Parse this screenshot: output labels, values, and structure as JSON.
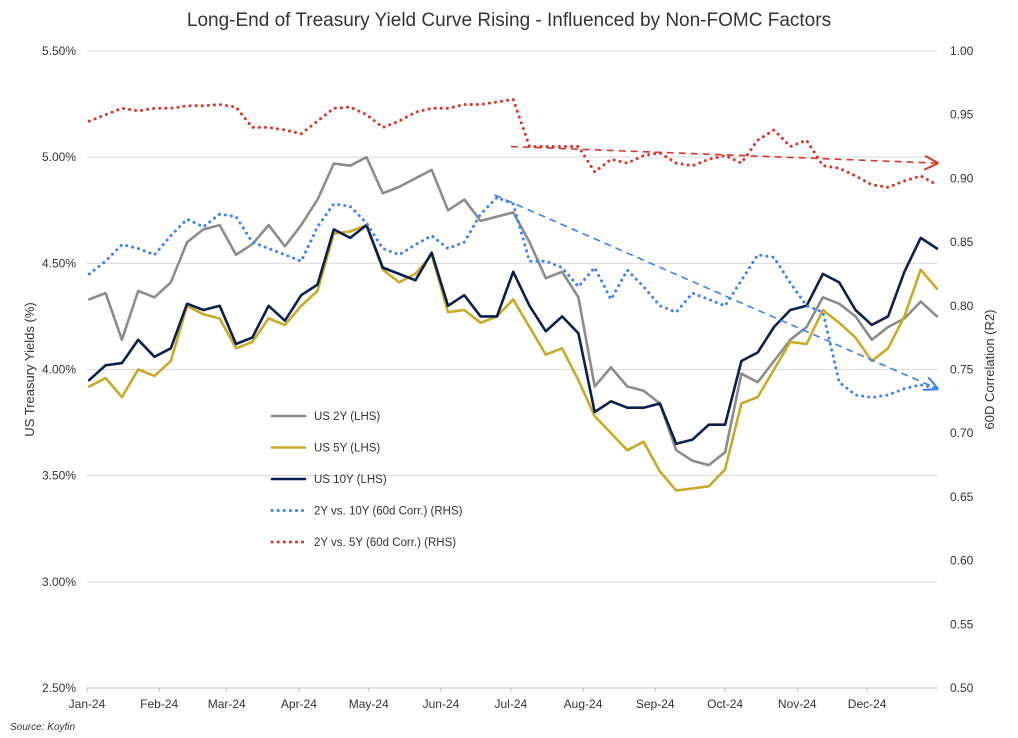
{
  "chart_data": {
    "type": "line",
    "title": "Long-End of Treasury Yield Curve Rising - Influenced by Non-FOMC Factors",
    "source": "Source: Koyfin",
    "ylabel_left": "US Treasury Yields (%)",
    "ylabel_right": "60D Correlation (R2)",
    "ylim_left": [
      2.5,
      5.5
    ],
    "ylim_right": [
      0.5,
      1.0
    ],
    "yticks_left": [
      "2.50%",
      "3.00%",
      "3.50%",
      "4.00%",
      "4.50%",
      "5.00%",
      "5.50%"
    ],
    "yticks_left_values": [
      2.5,
      3.0,
      3.5,
      4.0,
      4.5,
      5.0,
      5.5
    ],
    "yticks_right": [
      "0.50",
      "0.55",
      "0.60",
      "0.65",
      "0.70",
      "0.75",
      "0.80",
      "0.85",
      "0.90",
      "0.95",
      "1.00"
    ],
    "yticks_right_values": [
      0.5,
      0.55,
      0.6,
      0.65,
      0.7,
      0.75,
      0.8,
      0.85,
      0.9,
      0.95,
      1.0
    ],
    "x_tick_labels": [
      "Jan-24",
      "Feb-24",
      "Mar-24",
      "Apr-24",
      "May-24",
      "Jun-24",
      "Jul-24",
      "Aug-24",
      "Sep-24",
      "Oct-24",
      "Nov-24",
      "Dec-24"
    ],
    "x_tick_dates": [
      "2024-01-01",
      "2024-02-01",
      "2024-03-01",
      "2024-04-01",
      "2024-05-01",
      "2024-06-01",
      "2024-07-01",
      "2024-08-01",
      "2024-09-01",
      "2024-10-01",
      "2024-11-01",
      "2024-12-01"
    ],
    "x_range": [
      "2024-01-01",
      "2024-12-31"
    ],
    "grid": "horizontal",
    "legend_position": "center-left",
    "series": [
      {
        "name": "US 2Y (LHS)",
        "axis": "left",
        "style": "solid",
        "color": "#8c8c8c",
        "x": [
          "2024-01-02",
          "2024-01-09",
          "2024-01-16",
          "2024-01-23",
          "2024-01-30",
          "2024-02-06",
          "2024-02-13",
          "2024-02-20",
          "2024-02-27",
          "2024-03-05",
          "2024-03-12",
          "2024-03-19",
          "2024-03-26",
          "2024-04-02",
          "2024-04-09",
          "2024-04-16",
          "2024-04-23",
          "2024-04-30",
          "2024-05-07",
          "2024-05-14",
          "2024-05-21",
          "2024-05-28",
          "2024-06-04",
          "2024-06-11",
          "2024-06-18",
          "2024-06-25",
          "2024-07-02",
          "2024-07-09",
          "2024-07-16",
          "2024-07-23",
          "2024-07-30",
          "2024-08-06",
          "2024-08-13",
          "2024-08-20",
          "2024-08-27",
          "2024-09-03",
          "2024-09-10",
          "2024-09-17",
          "2024-09-24",
          "2024-10-01",
          "2024-10-08",
          "2024-10-15",
          "2024-10-22",
          "2024-10-29",
          "2024-11-05",
          "2024-11-12",
          "2024-11-19",
          "2024-11-26",
          "2024-12-03",
          "2024-12-10",
          "2024-12-17",
          "2024-12-24",
          "2024-12-31"
        ],
        "values": [
          4.33,
          4.36,
          4.14,
          4.37,
          4.34,
          4.41,
          4.6,
          4.66,
          4.68,
          4.54,
          4.59,
          4.68,
          4.58,
          4.68,
          4.8,
          4.97,
          4.96,
          5.0,
          4.83,
          4.86,
          4.9,
          4.94,
          4.75,
          4.8,
          4.7,
          4.72,
          4.74,
          4.6,
          4.43,
          4.46,
          4.34,
          3.92,
          4.01,
          3.92,
          3.9,
          3.84,
          3.62,
          3.57,
          3.55,
          3.61,
          3.98,
          3.94,
          4.04,
          4.14,
          4.2,
          4.34,
          4.31,
          4.25,
          4.14,
          4.2,
          4.24,
          4.32,
          4.25
        ]
      },
      {
        "name": "US 5Y (LHS)",
        "axis": "left",
        "style": "solid",
        "color": "#c8aa2b",
        "x": [
          "2024-01-02",
          "2024-01-09",
          "2024-01-16",
          "2024-01-23",
          "2024-01-30",
          "2024-02-06",
          "2024-02-13",
          "2024-02-20",
          "2024-02-27",
          "2024-03-05",
          "2024-03-12",
          "2024-03-19",
          "2024-03-26",
          "2024-04-02",
          "2024-04-09",
          "2024-04-16",
          "2024-04-23",
          "2024-04-30",
          "2024-05-07",
          "2024-05-14",
          "2024-05-21",
          "2024-05-28",
          "2024-06-04",
          "2024-06-11",
          "2024-06-18",
          "2024-06-25",
          "2024-07-02",
          "2024-07-09",
          "2024-07-16",
          "2024-07-23",
          "2024-07-30",
          "2024-08-06",
          "2024-08-13",
          "2024-08-20",
          "2024-08-27",
          "2024-09-03",
          "2024-09-10",
          "2024-09-17",
          "2024-09-24",
          "2024-10-01",
          "2024-10-08",
          "2024-10-15",
          "2024-10-22",
          "2024-10-29",
          "2024-11-05",
          "2024-11-12",
          "2024-11-19",
          "2024-11-26",
          "2024-12-03",
          "2024-12-10",
          "2024-12-17",
          "2024-12-24",
          "2024-12-31"
        ],
        "values": [
          3.92,
          3.96,
          3.87,
          4.0,
          3.97,
          4.04,
          4.3,
          4.26,
          4.24,
          4.1,
          4.13,
          4.24,
          4.21,
          4.3,
          4.37,
          4.64,
          4.65,
          4.68,
          4.47,
          4.41,
          4.45,
          4.54,
          4.27,
          4.28,
          4.22,
          4.25,
          4.33,
          4.2,
          4.07,
          4.1,
          3.95,
          3.78,
          3.7,
          3.62,
          3.66,
          3.52,
          3.43,
          3.44,
          3.45,
          3.53,
          3.84,
          3.87,
          4.0,
          4.13,
          4.12,
          4.28,
          4.22,
          4.15,
          4.04,
          4.1,
          4.25,
          4.47,
          4.38
        ]
      },
      {
        "name": "US 10Y (LHS)",
        "axis": "left",
        "style": "solid",
        "color": "#0b1f4d",
        "x": [
          "2024-01-02",
          "2024-01-09",
          "2024-01-16",
          "2024-01-23",
          "2024-01-30",
          "2024-02-06",
          "2024-02-13",
          "2024-02-20",
          "2024-02-27",
          "2024-03-05",
          "2024-03-12",
          "2024-03-19",
          "2024-03-26",
          "2024-04-02",
          "2024-04-09",
          "2024-04-16",
          "2024-04-23",
          "2024-04-30",
          "2024-05-07",
          "2024-05-14",
          "2024-05-21",
          "2024-05-28",
          "2024-06-04",
          "2024-06-11",
          "2024-06-18",
          "2024-06-25",
          "2024-07-02",
          "2024-07-09",
          "2024-07-16",
          "2024-07-23",
          "2024-07-30",
          "2024-08-06",
          "2024-08-13",
          "2024-08-20",
          "2024-08-27",
          "2024-09-03",
          "2024-09-10",
          "2024-09-17",
          "2024-09-24",
          "2024-10-01",
          "2024-10-08",
          "2024-10-15",
          "2024-10-22",
          "2024-10-29",
          "2024-11-05",
          "2024-11-12",
          "2024-11-19",
          "2024-11-26",
          "2024-12-03",
          "2024-12-10",
          "2024-12-17",
          "2024-12-24",
          "2024-12-31"
        ],
        "values": [
          3.95,
          4.02,
          4.03,
          4.14,
          4.06,
          4.1,
          4.31,
          4.28,
          4.3,
          4.12,
          4.15,
          4.3,
          4.23,
          4.35,
          4.4,
          4.66,
          4.62,
          4.68,
          4.48,
          4.45,
          4.42,
          4.55,
          4.3,
          4.35,
          4.25,
          4.25,
          4.46,
          4.3,
          4.18,
          4.25,
          4.17,
          3.8,
          3.85,
          3.82,
          3.82,
          3.84,
          3.65,
          3.67,
          3.74,
          3.74,
          4.04,
          4.08,
          4.2,
          4.28,
          4.3,
          4.45,
          4.41,
          4.28,
          4.21,
          4.25,
          4.46,
          4.62,
          4.57
        ]
      },
      {
        "name": "2Y vs. 10Y (60d Corr.) (RHS)",
        "axis": "right",
        "style": "dotted",
        "color": "#3b82f6",
        "x": [
          "2024-01-02",
          "2024-01-09",
          "2024-01-16",
          "2024-01-23",
          "2024-01-30",
          "2024-02-06",
          "2024-02-13",
          "2024-02-20",
          "2024-02-27",
          "2024-03-05",
          "2024-03-12",
          "2024-03-19",
          "2024-03-26",
          "2024-04-02",
          "2024-04-09",
          "2024-04-16",
          "2024-04-23",
          "2024-04-30",
          "2024-05-07",
          "2024-05-14",
          "2024-05-21",
          "2024-05-28",
          "2024-06-04",
          "2024-06-11",
          "2024-06-18",
          "2024-06-25",
          "2024-07-02",
          "2024-07-09",
          "2024-07-16",
          "2024-07-23",
          "2024-07-30",
          "2024-08-06",
          "2024-08-13",
          "2024-08-20",
          "2024-08-27",
          "2024-09-03",
          "2024-09-10",
          "2024-09-17",
          "2024-09-24",
          "2024-10-01",
          "2024-10-08",
          "2024-10-15",
          "2024-10-22",
          "2024-10-29",
          "2024-11-05",
          "2024-11-12",
          "2024-11-19",
          "2024-11-26",
          "2024-12-03",
          "2024-12-10",
          "2024-12-17",
          "2024-12-24",
          "2024-12-31"
        ],
        "values": [
          0.825,
          0.835,
          0.848,
          0.845,
          0.84,
          0.855,
          0.868,
          0.862,
          0.872,
          0.87,
          0.85,
          0.845,
          0.84,
          0.835,
          0.862,
          0.88,
          0.878,
          0.865,
          0.845,
          0.84,
          0.848,
          0.855,
          0.845,
          0.85,
          0.872,
          0.885,
          0.88,
          0.835,
          0.835,
          0.83,
          0.815,
          0.83,
          0.805,
          0.828,
          0.815,
          0.8,
          0.795,
          0.81,
          0.805,
          0.8,
          0.82,
          0.84,
          0.838,
          0.818,
          0.8,
          0.795,
          0.74,
          0.73,
          0.728,
          0.73,
          0.735,
          0.738,
          0.735
        ]
      },
      {
        "name": "2Y vs. 5Y (60d Corr.) (RHS)",
        "axis": "right",
        "style": "dotted",
        "color": "#d9372b",
        "x": [
          "2024-01-02",
          "2024-01-09",
          "2024-01-16",
          "2024-01-23",
          "2024-01-30",
          "2024-02-06",
          "2024-02-13",
          "2024-02-20",
          "2024-02-27",
          "2024-03-05",
          "2024-03-12",
          "2024-03-19",
          "2024-03-26",
          "2024-04-02",
          "2024-04-09",
          "2024-04-16",
          "2024-04-23",
          "2024-04-30",
          "2024-05-07",
          "2024-05-14",
          "2024-05-21",
          "2024-05-28",
          "2024-06-04",
          "2024-06-11",
          "2024-06-18",
          "2024-06-25",
          "2024-07-02",
          "2024-07-09",
          "2024-07-16",
          "2024-07-23",
          "2024-07-30",
          "2024-08-06",
          "2024-08-13",
          "2024-08-20",
          "2024-08-27",
          "2024-09-03",
          "2024-09-10",
          "2024-09-17",
          "2024-09-24",
          "2024-10-01",
          "2024-10-08",
          "2024-10-15",
          "2024-10-22",
          "2024-10-29",
          "2024-11-05",
          "2024-11-12",
          "2024-11-19",
          "2024-11-26",
          "2024-12-03",
          "2024-12-10",
          "2024-12-17",
          "2024-12-24",
          "2024-12-31"
        ],
        "values": [
          0.945,
          0.95,
          0.955,
          0.953,
          0.955,
          0.955,
          0.957,
          0.957,
          0.958,
          0.956,
          0.94,
          0.94,
          0.938,
          0.935,
          0.945,
          0.955,
          0.956,
          0.95,
          0.94,
          0.945,
          0.952,
          0.955,
          0.955,
          0.958,
          0.958,
          0.96,
          0.962,
          0.925,
          0.925,
          0.925,
          0.925,
          0.905,
          0.915,
          0.912,
          0.918,
          0.92,
          0.912,
          0.91,
          0.915,
          0.918,
          0.912,
          0.93,
          0.938,
          0.925,
          0.93,
          0.91,
          0.908,
          0.902,
          0.895,
          0.893,
          0.898,
          0.902,
          0.895
        ]
      }
    ],
    "trendlines": [
      {
        "name": "2Y vs. 10Y trend",
        "axis": "right",
        "color": "#3b82f6",
        "style": "dashed-arrow",
        "from": {
          "x": "2024-06-24",
          "y": 0.887
        },
        "to": {
          "x": "2024-12-31",
          "y": 0.735
        }
      },
      {
        "name": "2Y vs. 5Y trend",
        "axis": "right",
        "color": "#d9372b",
        "style": "dashed-arrow",
        "from": {
          "x": "2024-07-01",
          "y": 0.925
        },
        "to": {
          "x": "2024-12-31",
          "y": 0.912
        }
      }
    ]
  }
}
